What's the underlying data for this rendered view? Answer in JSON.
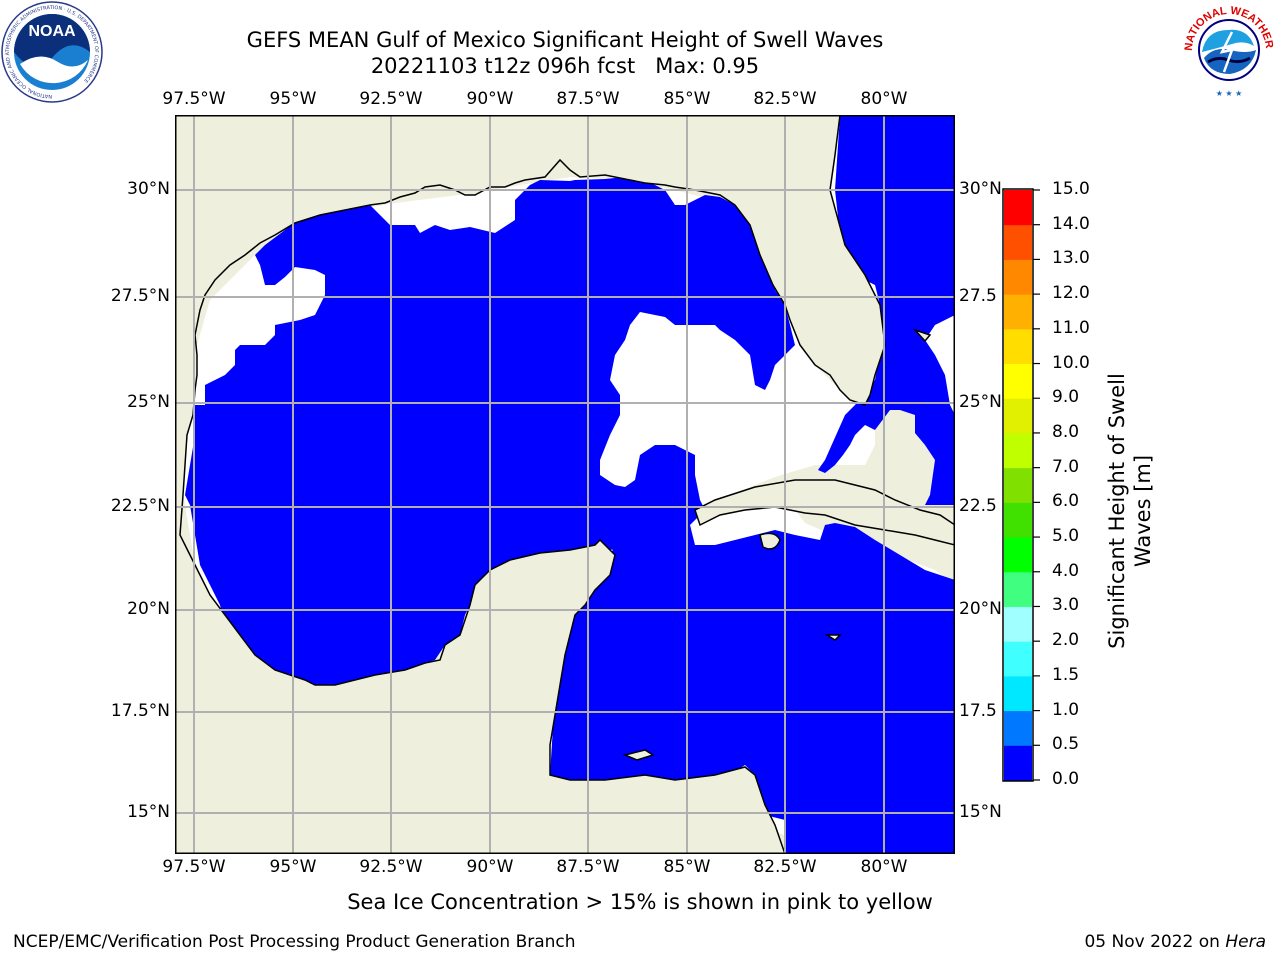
{
  "title": {
    "line1": "GEFS MEAN Gulf of Mexico Significant Height of Swell Waves",
    "line2": "20221103 t12z 096h fcst   Max: 0.95"
  },
  "longitude_labels": [
    "97.5°W",
    "95°W",
    "92.5°W",
    "90°W",
    "87.5°W",
    "85°W",
    "82.5°W",
    "80°W"
  ],
  "latitude_labels_left": [
    "30°N",
    "27.5°N",
    "25°N",
    "22.5°N",
    "20°N",
    "17.5°N",
    "15°N"
  ],
  "latitude_labels_right": [
    "30°N",
    "27.5",
    "25°N",
    "22.5",
    "20°N",
    "17.5",
    "15°N"
  ],
  "colorbar": {
    "label": "Significant Height of Swell Waves [m]",
    "label_line1": "Significant Height of Swell",
    "label_line2": "Waves [m]",
    "ticks": [
      "15.0",
      "14.0",
      "13.0",
      "12.0",
      "11.0",
      "10.0",
      "9.0",
      "8.0",
      "7.0",
      "6.0",
      "5.0",
      "4.0",
      "3.0",
      "2.0",
      "1.5",
      "1.0",
      "0.5",
      "0.0"
    ],
    "colors": [
      "#0000ff",
      "#0078ff",
      "#00e8ff",
      "#40ffff",
      "#60ffff",
      "#a0ffff",
      "#40ff80",
      "#00ff00",
      "#40e000",
      "#80e000",
      "#c0ff00",
      "#e0f000",
      "#ffff00",
      "#ffdd00",
      "#ffb000",
      "#ff8800",
      "#ff5000",
      "#ff2000",
      "#ff0000"
    ]
  },
  "map": {
    "land_color": "#efefde",
    "ocean_color": "#0000ff",
    "nodata_color": "#ffffff",
    "pacific_color": "#0078ff",
    "grid_color": "#b0b0b0"
  },
  "note": "Sea Ice Concentration > 15% is shown in pink to yellow",
  "footer": {
    "left": "NCEP/EMC/Verification Post Processing Product Generation Branch",
    "right_date": "05 Nov 2022 on ",
    "right_host": "Hera"
  },
  "logos": {
    "noaa": "NOAA",
    "noaa_ring": "NATIONAL OCEANIC AND ATMOSPHERIC ADMINISTRATION · U.S. DEPARTMENT OF COMMERCE",
    "nws_ring": "NATIONAL WEATHER SERVICE"
  }
}
